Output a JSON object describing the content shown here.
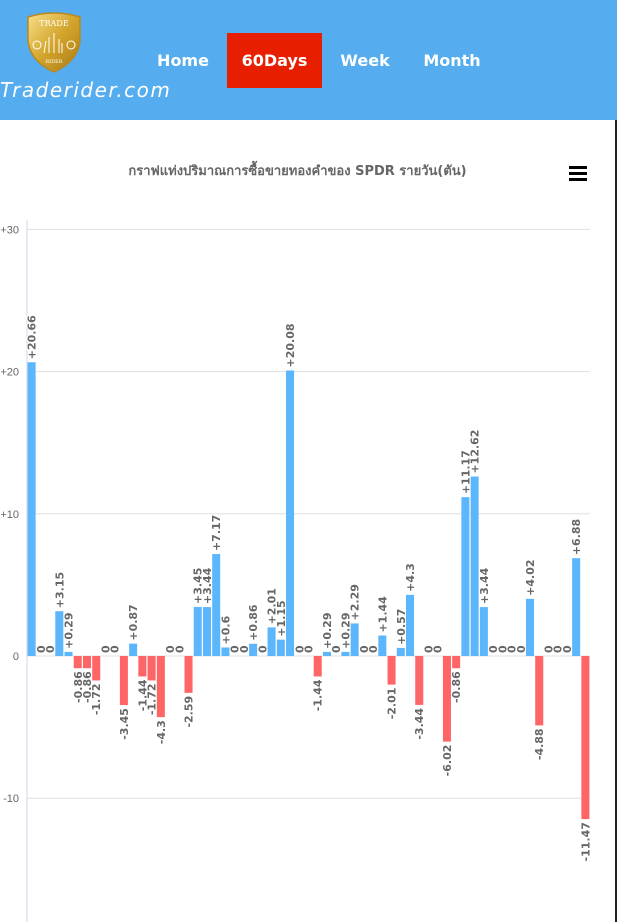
{
  "header": {
    "site_name": "Traderider.com",
    "logo_text": "TRADE RIDER",
    "nav": [
      {
        "label": "Home",
        "active": false
      },
      {
        "label": "60Days",
        "active": true
      },
      {
        "label": "Week",
        "active": false
      },
      {
        "label": "Month",
        "active": false
      }
    ],
    "active_color": "#e81e00",
    "bg_color": "#55acee"
  },
  "chart_menu_icon": "hamburger-icon",
  "chart_data": {
    "type": "bar",
    "title": "กราฟแท่งปริมาณการซื้อขายทองคำของ SPDR รายวัน(ตัน)",
    "xlabel": "",
    "ylabel": "",
    "ylim": [
      -18.7,
      30
    ],
    "yticks": [
      30,
      20,
      10,
      0,
      -10
    ],
    "ytick_labels": [
      "+30",
      "+20",
      "+10",
      "0",
      "-10"
    ],
    "grid": true,
    "positive_color": "#5cb6fb",
    "negative_color": "#fe6566",
    "values": [
      20.66,
      0,
      0,
      3.15,
      0.29,
      -0.86,
      -0.86,
      -1.72,
      0,
      0,
      -3.45,
      0.87,
      -1.44,
      -1.72,
      -4.3,
      0,
      0,
      -2.59,
      3.45,
      3.44,
      7.17,
      0.6,
      0,
      0,
      0.86,
      0,
      2.01,
      1.15,
      20.08,
      0,
      0,
      -1.44,
      0.29,
      0,
      0.29,
      2.29,
      0,
      0,
      1.44,
      -2.01,
      0.57,
      4.3,
      -3.44,
      0,
      0,
      -6.02,
      -0.86,
      11.17,
      12.62,
      3.44,
      0,
      0,
      0,
      0,
      4.02,
      -4.88,
      0,
      0,
      0,
      6.88,
      -11.47
    ]
  }
}
